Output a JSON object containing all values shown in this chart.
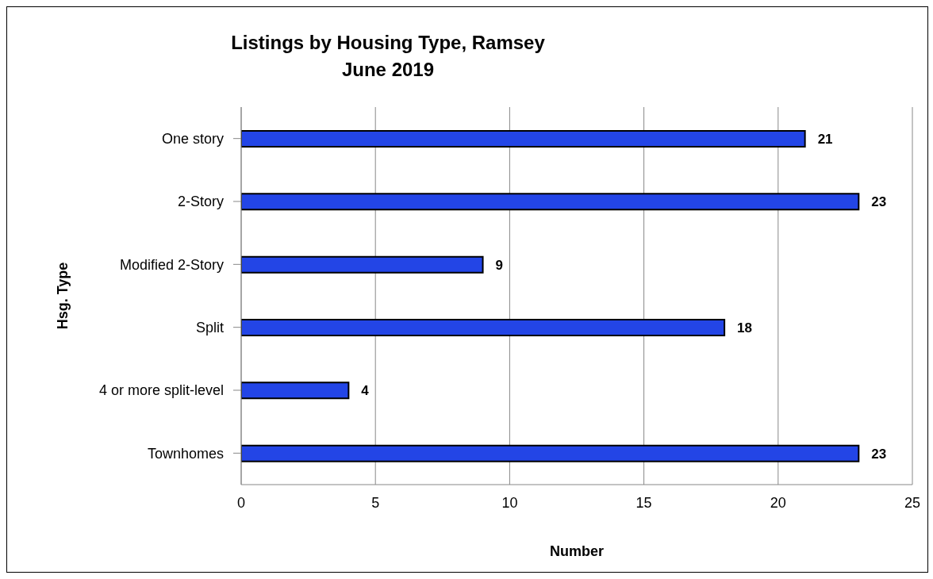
{
  "chart_data": {
    "type": "bar",
    "orientation": "horizontal",
    "title": "Listings by Housing Type, Ramsey",
    "subtitle": "June 2019",
    "xlabel": "Number",
    "ylabel": "Hsg. Type",
    "categories": [
      "One story",
      "2-Story",
      "Modified 2-Story",
      "Split",
      "4 or more split-level",
      "Townhomes"
    ],
    "values": [
      21,
      23,
      9,
      18,
      4,
      23
    ],
    "color": "#2345e6",
    "xlim": [
      0,
      25
    ],
    "xticks": [
      0,
      5,
      10,
      15,
      20,
      25
    ],
    "grid": "x",
    "data_labels": true
  }
}
